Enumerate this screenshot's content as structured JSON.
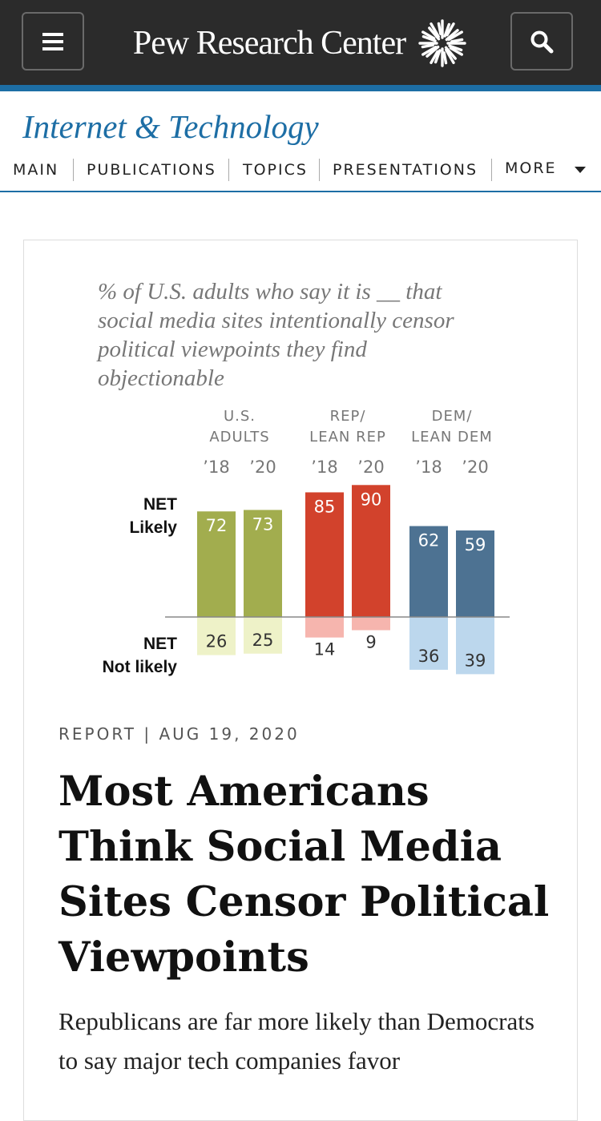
{
  "header": {
    "logo_text": "Pew Research Center",
    "menu_icon": "hamburger-menu-icon",
    "search_icon": "search-icon",
    "logo_icon": "sunburst-logo-icon"
  },
  "section": {
    "title": "Internet & Technology"
  },
  "nav": {
    "items": [
      "MAIN",
      "PUBLICATIONS",
      "TOPICS",
      "PRESENTATIONS",
      "MORE"
    ]
  },
  "colors": {
    "topbar": "#2b2b2b",
    "accent": "#1d6ea5",
    "us_adults": "#a2ad4e",
    "us_adults_light": "#eef2c8",
    "rep": "#d2422c",
    "rep_light": "#f6b5ae",
    "dem": "#4d7292",
    "dem_light": "#bcd7ed"
  },
  "chart_data": {
    "type": "bar",
    "title": "% of U.S. adults who say it is __ that social media sites intentionally censor political viewpoints they find objectionable",
    "title_lines": [
      "% of U.S. adults who say it is __ that",
      "social media sites intentionally censor",
      "political viewpoints they find",
      "objectionable"
    ],
    "row_labels": {
      "positive": [
        "NET",
        "Likely"
      ],
      "negative": [
        "NET",
        "Not likely"
      ]
    },
    "groups": [
      {
        "label_lines": [
          "U.S.",
          "ADULTS"
        ],
        "years": [
          "’18",
          "’20"
        ],
        "likely": [
          72,
          73
        ],
        "not_likely": [
          26,
          25
        ]
      },
      {
        "label_lines": [
          "REP/",
          "LEAN REP"
        ],
        "years": [
          "’18",
          "’20"
        ],
        "likely": [
          85,
          90
        ],
        "not_likely": [
          14,
          9
        ]
      },
      {
        "label_lines": [
          "DEM/",
          "LEAN DEM"
        ],
        "years": [
          "’18",
          "’20"
        ],
        "likely": [
          62,
          59
        ],
        "not_likely": [
          36,
          39
        ]
      }
    ]
  },
  "article": {
    "meta": "REPORT | AUG 19, 2020",
    "headline": "Most Americans Think Social Media Sites Censor Political Viewpoints",
    "summary": "Republicans are far more likely than Democrats to say major tech companies favor"
  }
}
